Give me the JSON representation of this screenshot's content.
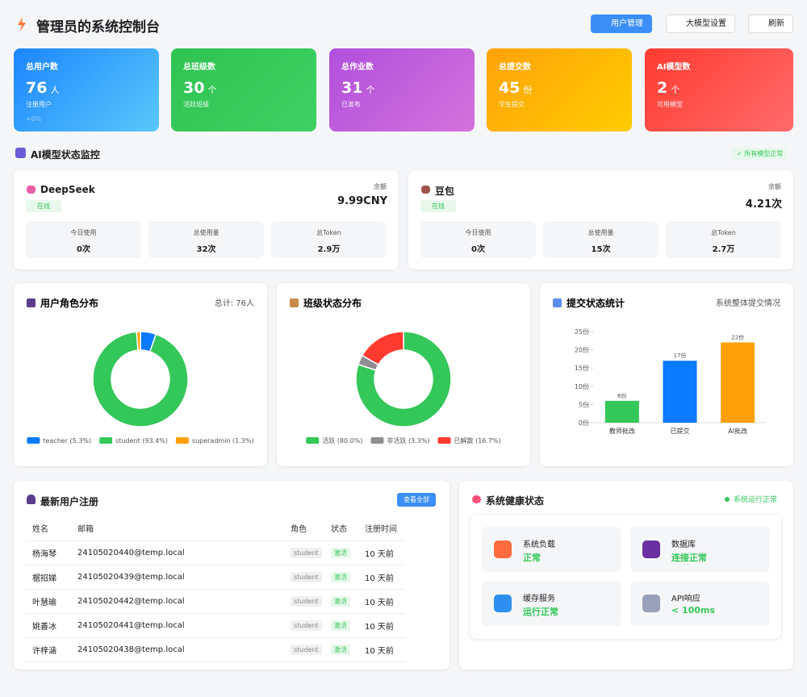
{
  "header": {
    "title": "管理员的系统控制台",
    "buttons": [
      "用户管理",
      "大模型设置",
      "刷新"
    ]
  },
  "stats": [
    {
      "label": "总用户数",
      "value": "76",
      "unit": "人",
      "sub": "注册用户",
      "trend": "+0%"
    },
    {
      "label": "总班级数",
      "value": "30",
      "unit": "个",
      "sub": "活跃班级"
    },
    {
      "label": "总作业数",
      "value": "31",
      "unit": "个",
      "sub": "已发布"
    },
    {
      "label": "总提交数",
      "value": "45",
      "unit": "份",
      "sub": "学生提交"
    },
    {
      "label": "AI模型数",
      "value": "2",
      "unit": "个",
      "sub": "可用模型"
    }
  ],
  "models_section": {
    "title": "AI模型状态监控",
    "badge": "所有模型正常",
    "models": [
      {
        "name": "DeepSeek",
        "status": "在线",
        "balance_label": "余额",
        "balance": "9.99CNY",
        "stats": [
          {
            "label": "今日使用",
            "value": "0次"
          },
          {
            "label": "总使用量",
            "value": "32次"
          },
          {
            "label": "总Token",
            "value": "2.9万"
          }
        ]
      },
      {
        "name": "豆包",
        "status": "在线",
        "balance_label": "余额",
        "balance": "4.21次",
        "stats": [
          {
            "label": "今日使用",
            "value": "0次"
          },
          {
            "label": "总使用量",
            "value": "15次"
          },
          {
            "label": "总Token",
            "value": "2.7万"
          }
        ]
      }
    ]
  },
  "chart_data": [
    {
      "type": "pie",
      "title": "用户角色分布",
      "subtitle": "总计: 76人",
      "categories": [
        "teacher (5.3%)",
        "student (93.4%)",
        "superadmin (1.3%)"
      ],
      "values": [
        5.3,
        93.4,
        1.3
      ],
      "colors": [
        "#0a7aff",
        "#34c759",
        "#ff9f0a"
      ]
    },
    {
      "type": "pie",
      "title": "班级状态分布",
      "categories": [
        "活跃 (80.0%)",
        "非活跃 (3.3%)",
        "已解散 (16.7%)"
      ],
      "values": [
        80.0,
        3.3,
        16.7
      ],
      "colors": [
        "#34c759",
        "#8e8e93",
        "#ff3b30"
      ]
    },
    {
      "type": "bar",
      "title": "提交状态统计",
      "subtitle": "系统整体提交情况",
      "categories": [
        "教师批改",
        "已提交",
        "AI批改"
      ],
      "values": [
        6,
        17,
        22
      ],
      "value_labels": [
        "6份",
        "17份",
        "22份"
      ],
      "colors": [
        "#34c759",
        "#0a7aff",
        "#ff9f0a"
      ],
      "ylim": [
        0,
        25
      ],
      "yticks": [
        {
          "value": 0,
          "label": "0份"
        },
        {
          "value": 5,
          "label": "5份"
        },
        {
          "value": 10,
          "label": "10份"
        },
        {
          "value": 15,
          "label": "15份"
        },
        {
          "value": 20,
          "label": "20份"
        },
        {
          "value": 25,
          "label": "25份"
        }
      ]
    }
  ],
  "users": {
    "title": "最新用户注册",
    "button": "查看全部",
    "columns": [
      "姓名",
      "邮箱",
      "角色",
      "状态",
      "注册时间"
    ],
    "rows": [
      [
        "杨海琴",
        "24105020440@temp.local",
        "student",
        "激活",
        "10 天前"
      ],
      [
        "椐招娣",
        "24105020439@temp.local",
        "student",
        "激活",
        "10 天前"
      ],
      [
        "叶慧瑜",
        "24105020442@temp.local",
        "student",
        "激活",
        "10 天前"
      ],
      [
        "姚善冰",
        "24105020441@temp.local",
        "student",
        "激活",
        "10 天前"
      ],
      [
        "许梓涵",
        "24105020438@temp.local",
        "student",
        "激活",
        "10 天前"
      ]
    ]
  },
  "health": {
    "title": "系统健康状态",
    "status": "系统运行正常",
    "items": [
      {
        "label": "系统负载",
        "value": "正常"
      },
      {
        "label": "数据库",
        "value": "连接正常"
      },
      {
        "label": "缓存服务",
        "value": "运行正常"
      },
      {
        "label": "API响应",
        "value": "< 100ms"
      }
    ]
  }
}
